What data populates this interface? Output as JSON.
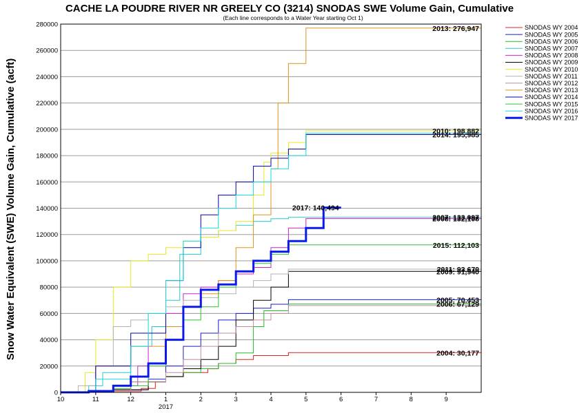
{
  "chart_data": {
    "type": "line",
    "title": "CACHE LA POUDRE RIVER NR GREELY CO (3214) SNODAS SWE Volume Gain, Cumulative",
    "subtitle": "(Each line corresponds to a Water Year starting Oct 1)",
    "ylabel": "Snow Water Equivalent (SWE) Volume Gain, Cumulative (acft)",
    "xlabel": "",
    "ylim": [
      0,
      280000
    ],
    "xlim": [
      0,
      12
    ],
    "y_ticks": [
      0,
      20000,
      40000,
      60000,
      80000,
      100000,
      120000,
      140000,
      160000,
      180000,
      200000,
      220000,
      240000,
      260000,
      280000
    ],
    "x_ticks": [
      {
        "pos": 0,
        "label": "10"
      },
      {
        "pos": 1,
        "label": "11"
      },
      {
        "pos": 2,
        "label": "12"
      },
      {
        "pos": 3,
        "label": "1"
      },
      {
        "pos": 4,
        "label": "2"
      },
      {
        "pos": 5,
        "label": "3"
      },
      {
        "pos": 6,
        "label": "4"
      },
      {
        "pos": 7,
        "label": "5"
      },
      {
        "pos": 8,
        "label": "6"
      },
      {
        "pos": 9,
        "label": "7"
      },
      {
        "pos": 10,
        "label": "8"
      },
      {
        "pos": 11,
        "label": "9"
      }
    ],
    "x_sublabel": {
      "pos": 3,
      "label": "2017"
    },
    "grid": true,
    "legend": "right",
    "series": [
      {
        "name": "SNODAS WY 2004",
        "color": "#e02020",
        "width": 1,
        "end_label": "2004: 30,177",
        "x": [
          0,
          1.5,
          2.3,
          2.7,
          3.0,
          3.5,
          4.2,
          4.5,
          5.0,
          5.5,
          6.5,
          12
        ],
        "y": [
          0,
          1000,
          3000,
          8000,
          12000,
          15000,
          18000,
          22000,
          25000,
          28000,
          30177,
          30177
        ]
      },
      {
        "name": "SNODAS WY 2005",
        "color": "#1a1acc",
        "width": 1,
        "end_label": "2005: 70,453",
        "x": [
          0,
          1.5,
          2.5,
          3.0,
          3.5,
          4.0,
          4.5,
          5.0,
          5.5,
          6.0,
          6.5,
          12
        ],
        "y": [
          0,
          2000,
          10000,
          20000,
          35000,
          45000,
          55000,
          60000,
          64000,
          67000,
          70453,
          70453
        ]
      },
      {
        "name": "SNODAS WY 2006",
        "color": "#22bb22",
        "width": 1,
        "end_label": "2006: 67,129",
        "x": [
          0,
          1.5,
          2.0,
          3.0,
          3.5,
          4.0,
          4.5,
          5.0,
          5.5,
          5.8,
          6.5,
          12
        ],
        "y": [
          0,
          3000,
          8000,
          12000,
          15000,
          18000,
          22000,
          30000,
          50000,
          62000,
          67129,
          67129
        ]
      },
      {
        "name": "SNODAS WY 2007",
        "color": "#22c8c8",
        "width": 1,
        "end_label": "2007: 133,097",
        "x": [
          0,
          0.8,
          1.2,
          2.0,
          2.6,
          3.0,
          3.4,
          4.0,
          4.5,
          5.0,
          5.5,
          6.0,
          6.5,
          7.5,
          12
        ],
        "y": [
          0,
          5000,
          15000,
          35000,
          50000,
          70000,
          105000,
          118000,
          123000,
          127000,
          130000,
          132000,
          133097,
          133097,
          133097
        ]
      },
      {
        "name": "SNODAS WY 2008",
        "color": "#cc22cc",
        "width": 1,
        "end_label": "2008: 132,108",
        "x": [
          0,
          1.5,
          2.2,
          2.5,
          3.0,
          3.5,
          4.0,
          4.5,
          5.0,
          5.5,
          6.0,
          6.5,
          7.0,
          12
        ],
        "y": [
          0,
          5000,
          20000,
          45000,
          60000,
          75000,
          80000,
          85000,
          90000,
          95000,
          110000,
          125000,
          132108,
          132108
        ]
      },
      {
        "name": "SNODAS WY 2009",
        "color": "#000000",
        "width": 1,
        "end_label": "2009: 91,940",
        "x": [
          0,
          1.5,
          2.5,
          3.0,
          3.5,
          4.0,
          4.5,
          5.0,
          5.5,
          6.0,
          6.5,
          12
        ],
        "y": [
          0,
          2000,
          8000,
          12000,
          18000,
          25000,
          35000,
          55000,
          70000,
          80000,
          91940,
          91940
        ]
      },
      {
        "name": "SNODAS WY 2010",
        "color": "#e8e820",
        "width": 1,
        "end_label": "2010: 198,882",
        "x": [
          0,
          0.7,
          1.0,
          1.5,
          2.0,
          2.5,
          3.0,
          3.5,
          4.0,
          4.5,
          5.0,
          5.5,
          5.8,
          6.0,
          6.5,
          7.0,
          12
        ],
        "y": [
          0,
          15000,
          40000,
          80000,
          100000,
          105000,
          110000,
          115000,
          118000,
          123000,
          130000,
          150000,
          175000,
          182000,
          190000,
          198882,
          198882
        ]
      },
      {
        "name": "SNODAS WY 2011",
        "color": "#b0b0b0",
        "width": 1,
        "end_label": "2011: 93,670",
        "x": [
          0,
          0.5,
          1.0,
          1.5,
          2.0,
          2.5,
          3.0,
          3.5,
          4.0,
          4.5,
          5.0,
          5.5,
          6.0,
          6.5,
          12
        ],
        "y": [
          0,
          5000,
          20000,
          50000,
          55000,
          60000,
          65000,
          70000,
          72000,
          75000,
          80000,
          85000,
          90000,
          93670,
          93670
        ]
      },
      {
        "name": "SNODAS WY 2012",
        "color": "#c08aa0",
        "width": 1,
        "end_label": "",
        "x": [
          0,
          2.0,
          3.0,
          3.5,
          4.0,
          4.5,
          5.0,
          5.5,
          6.0,
          6.5,
          12
        ],
        "y": [
          0,
          8000,
          15000,
          25000,
          35000,
          45000,
          50000,
          55000,
          60000,
          66000,
          66000
        ]
      },
      {
        "name": "SNODAS WY 2013",
        "color": "#e0901a",
        "width": 1,
        "end_label": "2013: 276,947",
        "x": [
          0,
          1.0,
          2.0,
          3.0,
          3.5,
          4.0,
          4.5,
          5.0,
          5.5,
          6.0,
          6.2,
          6.5,
          7.0,
          12
        ],
        "y": [
          0,
          20000,
          35000,
          50000,
          65000,
          75000,
          85000,
          110000,
          135000,
          170000,
          220000,
          250000,
          276947,
          276947
        ]
      },
      {
        "name": "SNODAS WY 2014",
        "color": "#0000aa",
        "width": 1,
        "end_label": "2014: 195,985",
        "x": [
          0,
          1.0,
          2.0,
          3.0,
          3.5,
          4.0,
          4.5,
          5.0,
          5.5,
          6.0,
          6.5,
          7.0,
          12
        ],
        "y": [
          0,
          20000,
          45000,
          85000,
          110000,
          135000,
          150000,
          160000,
          172000,
          178000,
          185000,
          195985,
          195985
        ]
      },
      {
        "name": "SNODAS WY 2015",
        "color": "#30c030",
        "width": 1,
        "end_label": "2015: 112,103",
        "x": [
          0,
          1.5,
          2.5,
          3.0,
          3.5,
          4.0,
          4.5,
          5.0,
          5.5,
          6.0,
          6.5,
          12
        ],
        "y": [
          0,
          5000,
          20000,
          40000,
          55000,
          65000,
          80000,
          92000,
          98000,
          105000,
          112103,
          112103
        ]
      },
      {
        "name": "SNODAS WY 2016",
        "color": "#10d8e0",
        "width": 1,
        "end_label": "",
        "x": [
          0,
          1.0,
          2.0,
          2.5,
          3.0,
          3.5,
          4.0,
          4.5,
          5.0,
          5.5,
          6.0,
          6.5,
          7.0,
          12
        ],
        "y": [
          0,
          10000,
          35000,
          60000,
          85000,
          115000,
          125000,
          140000,
          150000,
          160000,
          170000,
          180000,
          197000,
          197000
        ]
      },
      {
        "name": "SNODAS WY 2017",
        "color": "#0a1aee",
        "width": 3,
        "end_label": "2017: 140,494",
        "x": [
          0,
          0.8,
          1.5,
          2.0,
          2.5,
          3.0,
          3.5,
          4.0,
          4.5,
          5.0,
          5.5,
          6.0,
          6.5,
          7.0,
          7.5,
          8.0
        ],
        "y": [
          0,
          1000,
          5000,
          12000,
          22000,
          40000,
          65000,
          78000,
          82000,
          92000,
          100000,
          107000,
          115000,
          125000,
          140494,
          140494
        ]
      }
    ]
  }
}
